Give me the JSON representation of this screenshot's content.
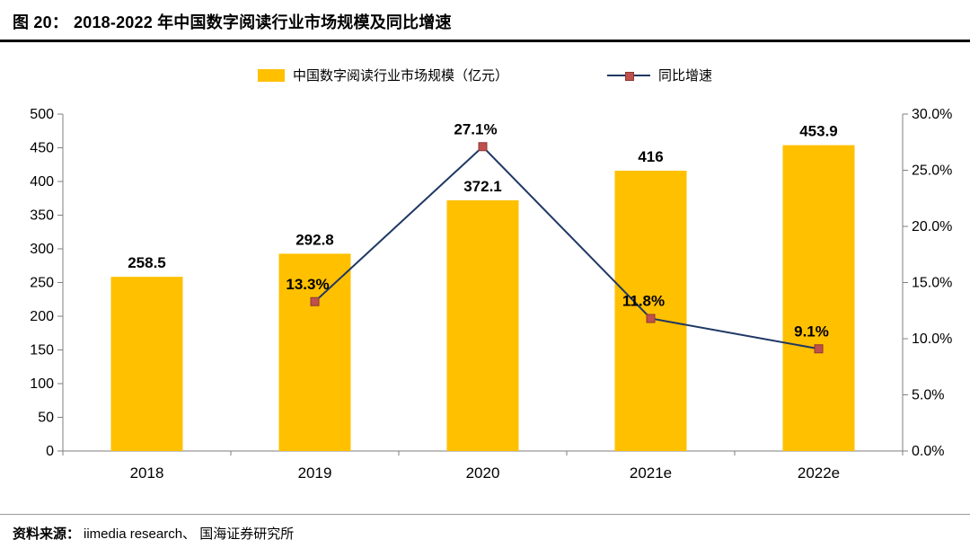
{
  "header": {
    "figure_label": "图 20：",
    "title": "2018-2022 年中国数字阅读行业市场规模及同比增速"
  },
  "legend": {
    "bar_label": "中国数字阅读行业市场规模（亿元）",
    "line_label": "同比增速"
  },
  "footer": {
    "source_prefix": "资料来源：",
    "source_body": "iimedia research、 国海证券研究所"
  },
  "chart_data": {
    "type": "bar",
    "title": "2018-2022 年中国数字阅读行业市场规模及同比增速",
    "categories": [
      "2018",
      "2019",
      "2020",
      "2021e",
      "2022e"
    ],
    "series": [
      {
        "name": "中国数字阅读行业市场规模（亿元）",
        "type": "bar",
        "axis": "left",
        "values": [
          258.5,
          292.8,
          372.1,
          416,
          453.9
        ],
        "labels": [
          "258.5",
          "292.8",
          "372.1",
          "416",
          "453.9"
        ]
      },
      {
        "name": "同比增速",
        "type": "line",
        "axis": "right",
        "values": [
          null,
          13.3,
          27.1,
          11.8,
          9.1
        ],
        "labels": [
          "",
          "13.3%",
          "27.1%",
          "11.8%",
          "9.1%"
        ]
      }
    ],
    "left_axis": {
      "min": 0,
      "max": 500,
      "step": 50
    },
    "right_axis": {
      "min": 0,
      "max": 30,
      "step": 5,
      "suffix": "%"
    },
    "legend_position": "top",
    "grid": false,
    "colors": {
      "bar": "#FFC000",
      "line": "#1F3864",
      "marker": "#C0504D",
      "marker_border": "#8C3836",
      "axis": "#7F7F7F",
      "text": "#000000"
    }
  }
}
